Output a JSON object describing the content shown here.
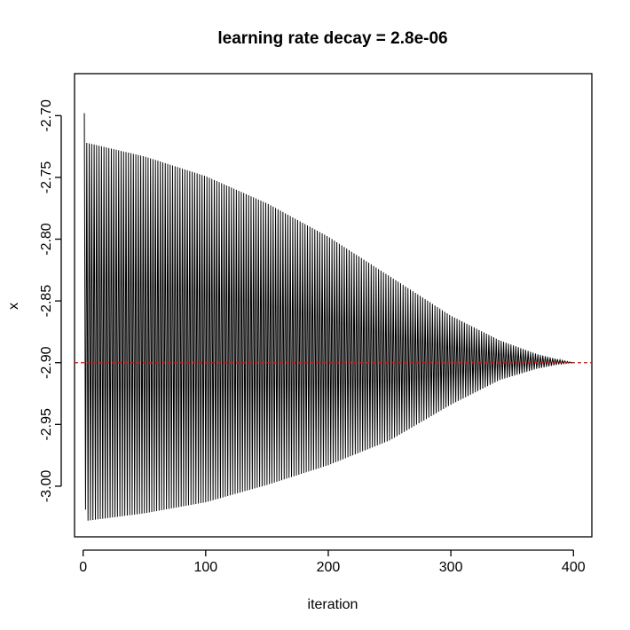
{
  "chart_data": {
    "type": "line",
    "title": "learning rate decay =  2.8e-06",
    "xlabel": "iteration",
    "ylabel": "x",
    "xlim": [
      -7,
      415
    ],
    "ylim": [
      -3.041,
      -2.666
    ],
    "x_ticks": [
      0,
      100,
      200,
      300,
      400
    ],
    "x_tick_labels": [
      "0",
      "100",
      "200",
      "300",
      "400"
    ],
    "y_ticks": [
      -3.0,
      -2.95,
      -2.9,
      -2.85,
      -2.8,
      -2.75,
      -2.7
    ],
    "y_tick_labels": [
      "-3.00",
      "-2.95",
      "-2.90",
      "-2.85",
      "-2.80",
      "-2.75",
      "-2.70"
    ],
    "grid": false,
    "series": [
      {
        "color": "#000000",
        "description_points": {
          "x": [
            1,
            2,
            3,
            50,
            100,
            150,
            200,
            250,
            300,
            340,
            370,
            390,
            400
          ],
          "y_upper": [
            -2.698,
            -3.019,
            -2.722,
            -2.733,
            -2.749,
            -2.771,
            -2.798,
            -2.83,
            -2.862,
            -2.882,
            -2.893,
            -2.898,
            -2.9
          ],
          "y_lower": [
            -2.698,
            -3.019,
            -3.028,
            -3.022,
            -3.013,
            -2.999,
            -2.983,
            -2.963,
            -2.934,
            -2.914,
            -2.905,
            -2.901,
            -2.9
          ]
        }
      }
    ],
    "reference_line": {
      "y": -2.9,
      "color": "#ff0000",
      "style": "dashed"
    }
  }
}
